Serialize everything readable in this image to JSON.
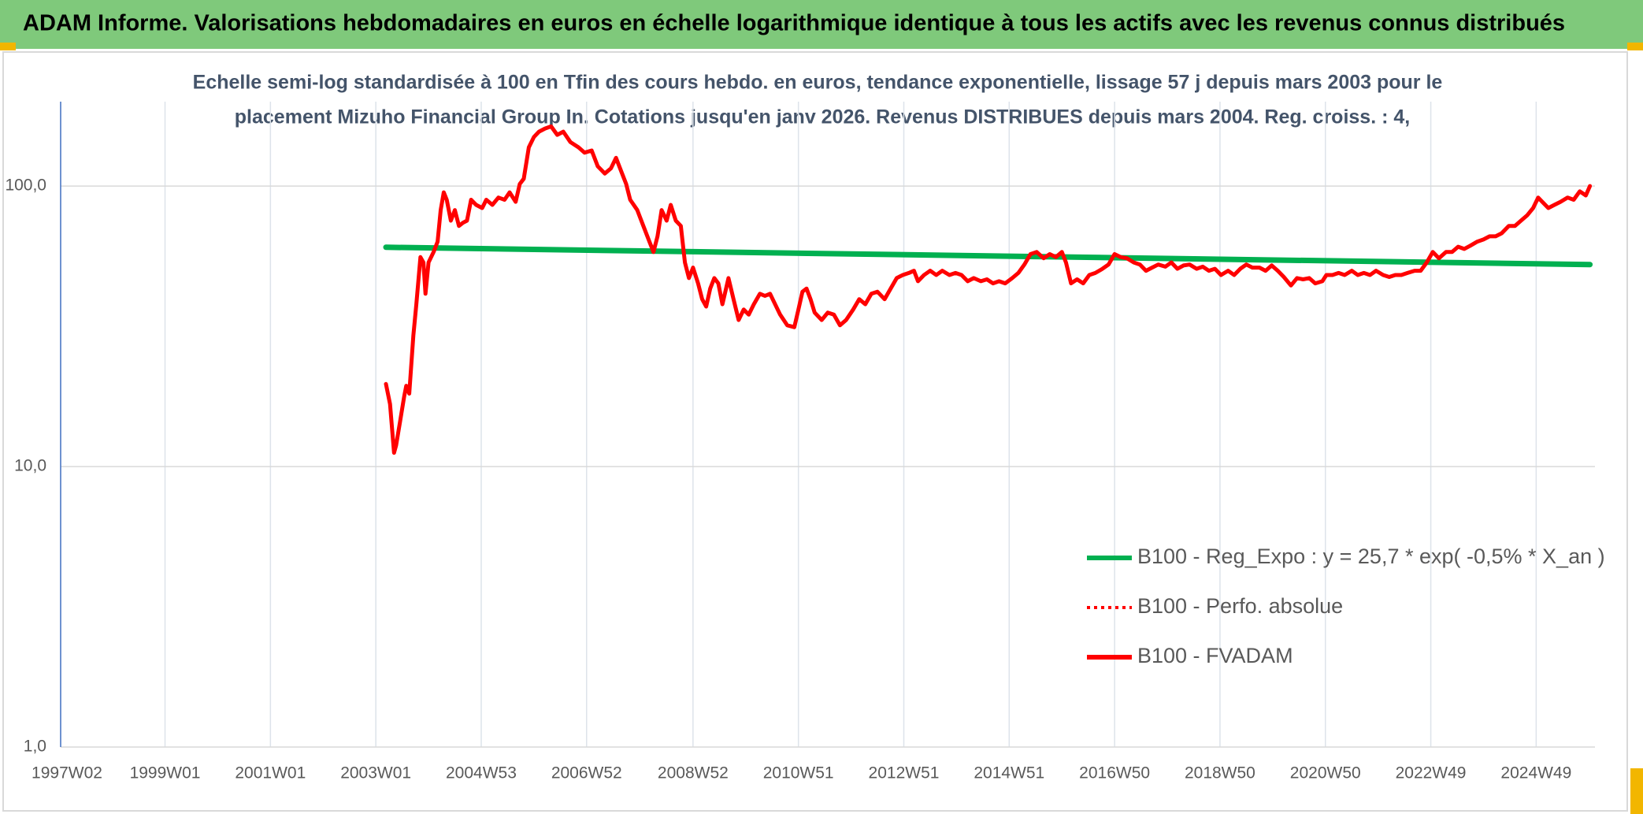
{
  "chart_data": {
    "type": "line",
    "title": "ADAM Informe. Valorisations hebdomadaires en euros en échelle logarithmique identique à tous les actifs avec les revenus connus distribués",
    "subtitle": [
      "Echelle semi-log standardisée à 100 en Tfin des cours hebdo. en euros, tendance exponentielle, lissage 57 j depuis mars 2003 pour le",
      "placement Mizuho Financial Group In. Cotations jusqu'en janv 2026. Revenus DISTRIBUES depuis mars 2004. Reg. croiss. : 4,"
    ],
    "log_scale_y": true,
    "grid": true,
    "legend": "lower right",
    "ylim": [
      1,
      200
    ],
    "yticks": [
      {
        "value": 1,
        "label": "1,0"
      },
      {
        "value": 10,
        "label": "10,0"
      },
      {
        "value": 100,
        "label": "100,0"
      }
    ],
    "xlim": [
      0,
      1514
    ],
    "xticks": [
      {
        "value": 0,
        "label": "1997W02"
      },
      {
        "value": 103,
        "label": "1999W01"
      },
      {
        "value": 207,
        "label": "2001W01"
      },
      {
        "value": 311,
        "label": "2003W01"
      },
      {
        "value": 415,
        "label": "2004W53"
      },
      {
        "value": 519,
        "label": "2006W52"
      },
      {
        "value": 624,
        "label": "2008W52"
      },
      {
        "value": 728,
        "label": "2010W51"
      },
      {
        "value": 832,
        "label": "2012W51"
      },
      {
        "value": 936,
        "label": "2014W51"
      },
      {
        "value": 1040,
        "label": "2016W50"
      },
      {
        "value": 1144,
        "label": "2018W50"
      },
      {
        "value": 1248,
        "label": "2020W50"
      },
      {
        "value": 1352,
        "label": "2022W49"
      },
      {
        "value": 1456,
        "label": "2024W49"
      }
    ],
    "series": [
      {
        "name": "B100 - Reg_Expo : y = 25,7 * exp( -0,5% *  X_an )",
        "color": "#00b050",
        "dash": "solid",
        "x": [
          321,
          1509
        ],
        "values": [
          60.5,
          52.5
        ]
      },
      {
        "name": "B100 - Perfo. absolue",
        "color": "#ff0000",
        "dash": "dotted",
        "x": [],
        "values": []
      },
      {
        "name": "B100 - FVADAM",
        "color": "#ff0000",
        "dash": "solid",
        "x": [
          321,
          325,
          329,
          331,
          335,
          339,
          341,
          344,
          348,
          351,
          355,
          358,
          360,
          363,
          368,
          372,
          375,
          378,
          381,
          385,
          389,
          393,
          397,
          401,
          405,
          410,
          416,
          420,
          426,
          432,
          438,
          443,
          449,
          453,
          457,
          462,
          467,
          472,
          478,
          484,
          490,
          496,
          503,
          511,
          517,
          524,
          530,
          537,
          543,
          548,
          554,
          558,
          562,
          569,
          575,
          581,
          585,
          589,
          593,
          598,
          602,
          607,
          612,
          616,
          620,
          624,
          629,
          633,
          637,
          641,
          645,
          649,
          653,
          659,
          664,
          669,
          674,
          679,
          684,
          690,
          695,
          700,
          705,
          710,
          717,
          724,
          728,
          732,
          736,
          740,
          744,
          751,
          757,
          763,
          769,
          775,
          782,
          788,
          794,
          800,
          806,
          813,
          819,
          825,
          831,
          837,
          842,
          846,
          852,
          858,
          864,
          870,
          877,
          883,
          889,
          895,
          901,
          908,
          914,
          920,
          926,
          932,
          939,
          945,
          951,
          957,
          963,
          970,
          976,
          982,
          988,
          992,
          997,
          1003,
          1009,
          1015,
          1021,
          1028,
          1034,
          1040,
          1046,
          1052,
          1059,
          1065,
          1071,
          1077,
          1083,
          1090,
          1096,
          1102,
          1108,
          1114,
          1121,
          1127,
          1133,
          1139,
          1145,
          1152,
          1158,
          1164,
          1170,
          1176,
          1183,
          1189,
          1195,
          1201,
          1207,
          1214,
          1220,
          1226,
          1232,
          1238,
          1245,
          1249,
          1255,
          1261,
          1267,
          1274,
          1280,
          1286,
          1292,
          1298,
          1305,
          1311,
          1317,
          1323,
          1329,
          1336,
          1342,
          1348,
          1354,
          1360,
          1367,
          1373,
          1379,
          1385,
          1391,
          1398,
          1404,
          1410,
          1416,
          1422,
          1429,
          1435,
          1441,
          1447,
          1453,
          1458,
          1462,
          1468,
          1474,
          1480,
          1487,
          1493,
          1499,
          1505,
          1509
        ],
        "values": [
          19.7,
          16.7,
          11.2,
          11.9,
          14.5,
          17.8,
          19.4,
          18.2,
          29.3,
          37.9,
          55.8,
          53.4,
          41.3,
          53.4,
          58.2,
          63.4,
          82.1,
          95.0,
          89.4,
          75.3,
          82.1,
          72.1,
          74.0,
          75.3,
          89.4,
          85.7,
          83.5,
          89.4,
          85.7,
          91.0,
          89.4,
          95.0,
          87.9,
          101.7,
          106.2,
          137.4,
          149.7,
          156.3,
          160.4,
          163.2,
          152.3,
          156.3,
          143.5,
          137.4,
          131.6,
          133.9,
          117.7,
          110.9,
          115.7,
          126.1,
          110.9,
          101.7,
          89.4,
          82.1,
          72.1,
          63.4,
          58.2,
          66.2,
          82.1,
          75.3,
          85.7,
          75.3,
          72.1,
          53.4,
          47.0,
          51.2,
          45.0,
          39.5,
          37.2,
          43.1,
          47.0,
          45.0,
          37.9,
          47.0,
          39.5,
          33.3,
          36.3,
          34.8,
          37.9,
          41.3,
          40.6,
          41.3,
          37.9,
          34.8,
          31.9,
          31.4,
          36.3,
          42.0,
          43.1,
          39.5,
          35.4,
          33.3,
          35.4,
          34.8,
          31.9,
          33.3,
          36.3,
          39.5,
          37.9,
          41.3,
          42.0,
          39.5,
          43.1,
          47.0,
          48.2,
          49.0,
          49.9,
          45.8,
          48.2,
          49.9,
          48.2,
          49.9,
          48.2,
          49.0,
          48.2,
          45.8,
          47.0,
          45.8,
          46.5,
          45.0,
          45.8,
          45.0,
          47.0,
          49.0,
          52.5,
          57.2,
          58.2,
          55.3,
          57.2,
          55.8,
          58.2,
          53.4,
          45.0,
          46.5,
          45.0,
          48.2,
          49.0,
          50.7,
          52.5,
          57.2,
          55.8,
          55.3,
          53.4,
          52.5,
          49.9,
          51.2,
          52.5,
          51.6,
          53.4,
          50.7,
          52.1,
          52.5,
          50.7,
          51.6,
          49.9,
          50.7,
          48.2,
          49.9,
          48.2,
          50.7,
          52.5,
          51.2,
          51.2,
          49.9,
          52.1,
          49.9,
          47.4,
          44.2,
          47.0,
          46.5,
          47.0,
          45.0,
          45.8,
          48.2,
          48.2,
          49.0,
          48.2,
          49.9,
          48.2,
          49.0,
          48.2,
          49.9,
          48.2,
          47.4,
          48.2,
          48.2,
          49.0,
          49.9,
          49.9,
          53.4,
          58.2,
          55.3,
          58.2,
          58.2,
          60.8,
          59.7,
          61.3,
          63.4,
          64.5,
          66.2,
          66.2,
          67.9,
          72.1,
          72.1,
          75.3,
          78.6,
          83.5,
          91.0,
          87.9,
          83.5,
          85.7,
          87.9,
          91.0,
          89.4,
          95.8,
          92.6,
          100
        ]
      }
    ]
  }
}
